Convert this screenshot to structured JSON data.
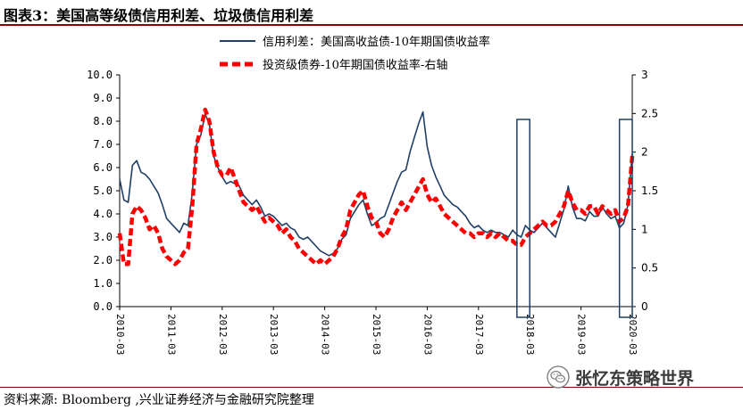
{
  "header": {
    "title": "图表3：美国高等级债信用利差、垃圾债信用利差"
  },
  "footer": {
    "source": "资料来源: Bloomberg ,兴业证券经济与金融研究院整理"
  },
  "watermark": {
    "text": "张忆东策略世界",
    "icon": "wechat-logo-icon"
  },
  "colors": {
    "series1": "#1f3f66",
    "series2": "#ff0000",
    "highlight": "#1f3f66",
    "axis": "#000000",
    "title_rule": "#8b0000"
  },
  "chart_data": {
    "type": "line",
    "title": "",
    "legend_position": "top",
    "grid": false,
    "x_axis": {
      "ticks": [
        "2010-03",
        "2011-03",
        "2012-03",
        "2013-03",
        "2014-03",
        "2015-03",
        "2016-03",
        "2017-03",
        "2018-03",
        "2019-03",
        "2020-03"
      ],
      "range": [
        "2010-03",
        "2020-03"
      ]
    },
    "y_left": {
      "range": [
        0,
        10
      ],
      "ticks": [
        "0.0",
        "1.0",
        "2.0",
        "3.0",
        "4.0",
        "5.0",
        "6.0",
        "7.0",
        "8.0",
        "9.0",
        "10.0"
      ]
    },
    "y_right": {
      "range": [
        0,
        3
      ],
      "ticks": [
        "0",
        "0.5",
        "1",
        "1.5",
        "2",
        "2.5",
        "3"
      ]
    },
    "highlights": [
      {
        "from": "2017-12",
        "to": "2018-03"
      },
      {
        "from": "2019-12",
        "to": "2020-03"
      }
    ],
    "series": [
      {
        "name": "信用利差：美国高收益债-10年期国债收益率",
        "axis": "left",
        "style": "solid",
        "points": [
          [
            "2010-03",
            5.5
          ],
          [
            "2010-04",
            4.6
          ],
          [
            "2010-05",
            4.5
          ],
          [
            "2010-06",
            6.1
          ],
          [
            "2010-07",
            6.3
          ],
          [
            "2010-08",
            5.8
          ],
          [
            "2010-09",
            5.7
          ],
          [
            "2010-10",
            5.5
          ],
          [
            "2010-11",
            5.2
          ],
          [
            "2010-12",
            4.9
          ],
          [
            "2011-01",
            4.4
          ],
          [
            "2011-02",
            3.8
          ],
          [
            "2011-03",
            3.6
          ],
          [
            "2011-04",
            3.4
          ],
          [
            "2011-05",
            3.2
          ],
          [
            "2011-06",
            3.6
          ],
          [
            "2011-07",
            3.5
          ],
          [
            "2011-08",
            4.9
          ],
          [
            "2011-09",
            7.0
          ],
          [
            "2011-10",
            7.4
          ],
          [
            "2011-11",
            8.3
          ],
          [
            "2011-12",
            7.9
          ],
          [
            "2012-01",
            6.5
          ],
          [
            "2012-02",
            6.0
          ],
          [
            "2012-03",
            5.6
          ],
          [
            "2012-04",
            5.3
          ],
          [
            "2012-05",
            5.4
          ],
          [
            "2012-06",
            5.3
          ],
          [
            "2012-07",
            5.2
          ],
          [
            "2012-08",
            4.8
          ],
          [
            "2012-09",
            4.6
          ],
          [
            "2012-10",
            4.4
          ],
          [
            "2012-11",
            4.6
          ],
          [
            "2012-12",
            4.3
          ],
          [
            "2013-01",
            3.9
          ],
          [
            "2013-02",
            4.0
          ],
          [
            "2013-03",
            3.9
          ],
          [
            "2013-04",
            3.7
          ],
          [
            "2013-05",
            3.5
          ],
          [
            "2013-06",
            3.6
          ],
          [
            "2013-07",
            3.4
          ],
          [
            "2013-08",
            3.3
          ],
          [
            "2013-09",
            3.0
          ],
          [
            "2013-10",
            2.9
          ],
          [
            "2013-11",
            3.0
          ],
          [
            "2013-12",
            2.8
          ],
          [
            "2014-01",
            2.6
          ],
          [
            "2014-02",
            2.4
          ],
          [
            "2014-03",
            2.3
          ],
          [
            "2014-04",
            2.2
          ],
          [
            "2014-05",
            2.3
          ],
          [
            "2014-06",
            2.5
          ],
          [
            "2014-07",
            2.9
          ],
          [
            "2014-08",
            3.1
          ],
          [
            "2014-09",
            3.8
          ],
          [
            "2014-10",
            4.1
          ],
          [
            "2014-11",
            4.4
          ],
          [
            "2014-12",
            4.6
          ],
          [
            "2015-01",
            4.0
          ],
          [
            "2015-02",
            3.5
          ],
          [
            "2015-03",
            3.6
          ],
          [
            "2015-04",
            3.8
          ],
          [
            "2015-05",
            3.9
          ],
          [
            "2015-06",
            4.4
          ],
          [
            "2015-07",
            4.9
          ],
          [
            "2015-08",
            5.4
          ],
          [
            "2015-09",
            5.8
          ],
          [
            "2015-10",
            5.9
          ],
          [
            "2015-11",
            6.7
          ],
          [
            "2015-12",
            7.3
          ],
          [
            "2016-01",
            7.9
          ],
          [
            "2016-02",
            8.4
          ],
          [
            "2016-03",
            6.9
          ],
          [
            "2016-04",
            6.1
          ],
          [
            "2016-05",
            5.6
          ],
          [
            "2016-06",
            5.2
          ],
          [
            "2016-07",
            4.8
          ],
          [
            "2016-08",
            4.6
          ],
          [
            "2016-09",
            4.4
          ],
          [
            "2016-10",
            4.3
          ],
          [
            "2016-11",
            4.1
          ],
          [
            "2016-12",
            3.9
          ],
          [
            "2017-01",
            3.6
          ],
          [
            "2017-02",
            3.4
          ],
          [
            "2017-03",
            3.5
          ],
          [
            "2017-04",
            3.3
          ],
          [
            "2017-05",
            3.2
          ],
          [
            "2017-06",
            3.3
          ],
          [
            "2017-07",
            3.2
          ],
          [
            "2017-08",
            3.2
          ],
          [
            "2017-09",
            3.1
          ],
          [
            "2017-10",
            3.0
          ],
          [
            "2017-11",
            3.3
          ],
          [
            "2017-12",
            3.1
          ],
          [
            "2018-01",
            3.0
          ],
          [
            "2018-02",
            3.5
          ],
          [
            "2018-03",
            3.3
          ],
          [
            "2018-04",
            3.2
          ],
          [
            "2018-05",
            3.4
          ],
          [
            "2018-06",
            3.6
          ],
          [
            "2018-07",
            3.4
          ],
          [
            "2018-08",
            3.2
          ],
          [
            "2018-09",
            3.0
          ],
          [
            "2018-10",
            3.6
          ],
          [
            "2018-11",
            4.2
          ],
          [
            "2018-12",
            5.2
          ],
          [
            "2019-01",
            4.3
          ],
          [
            "2019-02",
            3.8
          ],
          [
            "2019-03",
            3.8
          ],
          [
            "2019-04",
            3.7
          ],
          [
            "2019-05",
            4.1
          ],
          [
            "2019-06",
            3.9
          ],
          [
            "2019-07",
            3.9
          ],
          [
            "2019-08",
            4.3
          ],
          [
            "2019-09",
            4.0
          ],
          [
            "2019-10",
            3.8
          ],
          [
            "2019-11",
            3.9
          ],
          [
            "2019-12",
            3.4
          ],
          [
            "2020-01",
            3.6
          ],
          [
            "2020-02",
            4.4
          ],
          [
            "2020-03",
            6.6
          ]
        ]
      },
      {
        "name": "投资级债券-10年期国债收益率-右轴",
        "axis": "right",
        "style": "dashed",
        "points": [
          [
            "2010-03",
            0.95
          ],
          [
            "2010-04",
            0.55
          ],
          [
            "2010-05",
            0.55
          ],
          [
            "2010-06",
            1.2
          ],
          [
            "2010-07",
            1.3
          ],
          [
            "2010-08",
            1.25
          ],
          [
            "2010-09",
            1.15
          ],
          [
            "2010-10",
            1.0
          ],
          [
            "2010-11",
            1.05
          ],
          [
            "2010-12",
            0.95
          ],
          [
            "2011-01",
            0.75
          ],
          [
            "2011-02",
            0.65
          ],
          [
            "2011-03",
            0.6
          ],
          [
            "2011-04",
            0.55
          ],
          [
            "2011-05",
            0.6
          ],
          [
            "2011-06",
            0.7
          ],
          [
            "2011-07",
            0.75
          ],
          [
            "2011-08",
            1.3
          ],
          [
            "2011-09",
            2.1
          ],
          [
            "2011-10",
            2.3
          ],
          [
            "2011-11",
            2.55
          ],
          [
            "2011-12",
            2.4
          ],
          [
            "2012-01",
            2.0
          ],
          [
            "2012-02",
            1.8
          ],
          [
            "2012-03",
            1.7
          ],
          [
            "2012-04",
            1.7
          ],
          [
            "2012-05",
            1.8
          ],
          [
            "2012-06",
            1.65
          ],
          [
            "2012-07",
            1.5
          ],
          [
            "2012-08",
            1.35
          ],
          [
            "2012-09",
            1.3
          ],
          [
            "2012-10",
            1.25
          ],
          [
            "2012-11",
            1.3
          ],
          [
            "2012-12",
            1.2
          ],
          [
            "2013-01",
            1.1
          ],
          [
            "2013-02",
            1.15
          ],
          [
            "2013-03",
            1.1
          ],
          [
            "2013-04",
            1.05
          ],
          [
            "2013-05",
            0.95
          ],
          [
            "2013-06",
            1.0
          ],
          [
            "2013-07",
            0.9
          ],
          [
            "2013-08",
            0.85
          ],
          [
            "2013-09",
            0.75
          ],
          [
            "2013-10",
            0.7
          ],
          [
            "2013-11",
            0.65
          ],
          [
            "2013-12",
            0.6
          ],
          [
            "2014-01",
            0.55
          ],
          [
            "2014-02",
            0.6
          ],
          [
            "2014-03",
            0.55
          ],
          [
            "2014-04",
            0.6
          ],
          [
            "2014-05",
            0.65
          ],
          [
            "2014-06",
            0.75
          ],
          [
            "2014-07",
            0.9
          ],
          [
            "2014-08",
            1.0
          ],
          [
            "2014-09",
            1.25
          ],
          [
            "2014-10",
            1.35
          ],
          [
            "2014-11",
            1.45
          ],
          [
            "2014-12",
            1.5
          ],
          [
            "2015-01",
            1.3
          ],
          [
            "2015-02",
            1.15
          ],
          [
            "2015-03",
            1.1
          ],
          [
            "2015-04",
            0.95
          ],
          [
            "2015-05",
            0.9
          ],
          [
            "2015-06",
            1.0
          ],
          [
            "2015-07",
            1.15
          ],
          [
            "2015-08",
            1.25
          ],
          [
            "2015-09",
            1.35
          ],
          [
            "2015-10",
            1.25
          ],
          [
            "2015-11",
            1.35
          ],
          [
            "2015-12",
            1.45
          ],
          [
            "2016-01",
            1.55
          ],
          [
            "2016-02",
            1.65
          ],
          [
            "2016-03",
            1.45
          ],
          [
            "2016-04",
            1.35
          ],
          [
            "2016-05",
            1.4
          ],
          [
            "2016-06",
            1.3
          ],
          [
            "2016-07",
            1.2
          ],
          [
            "2016-08",
            1.15
          ],
          [
            "2016-09",
            1.1
          ],
          [
            "2016-10",
            1.05
          ],
          [
            "2016-11",
            1.0
          ],
          [
            "2016-12",
            0.95
          ],
          [
            "2017-01",
            0.95
          ],
          [
            "2017-02",
            0.9
          ],
          [
            "2017-03",
            0.95
          ],
          [
            "2017-04",
            0.95
          ],
          [
            "2017-05",
            0.9
          ],
          [
            "2017-06",
            0.95
          ],
          [
            "2017-07",
            0.9
          ],
          [
            "2017-08",
            0.95
          ],
          [
            "2017-09",
            0.9
          ],
          [
            "2017-10",
            0.85
          ],
          [
            "2017-11",
            0.85
          ],
          [
            "2017-12",
            0.8
          ],
          [
            "2018-01",
            0.8
          ],
          [
            "2018-02",
            0.9
          ],
          [
            "2018-03",
            0.95
          ],
          [
            "2018-04",
            1.0
          ],
          [
            "2018-05",
            1.05
          ],
          [
            "2018-06",
            1.1
          ],
          [
            "2018-07",
            1.05
          ],
          [
            "2018-08",
            1.05
          ],
          [
            "2018-09",
            1.1
          ],
          [
            "2018-10",
            1.2
          ],
          [
            "2018-11",
            1.3
          ],
          [
            "2018-12",
            1.5
          ],
          [
            "2019-01",
            1.35
          ],
          [
            "2019-02",
            1.25
          ],
          [
            "2019-03",
            1.25
          ],
          [
            "2019-04",
            1.2
          ],
          [
            "2019-05",
            1.3
          ],
          [
            "2019-06",
            1.3
          ],
          [
            "2019-07",
            1.2
          ],
          [
            "2019-08",
            1.3
          ],
          [
            "2019-09",
            1.25
          ],
          [
            "2019-10",
            1.2
          ],
          [
            "2019-11",
            1.25
          ],
          [
            "2019-12",
            1.1
          ],
          [
            "2020-01",
            1.15
          ],
          [
            "2020-02",
            1.3
          ],
          [
            "2020-03",
            1.95
          ]
        ]
      }
    ]
  }
}
